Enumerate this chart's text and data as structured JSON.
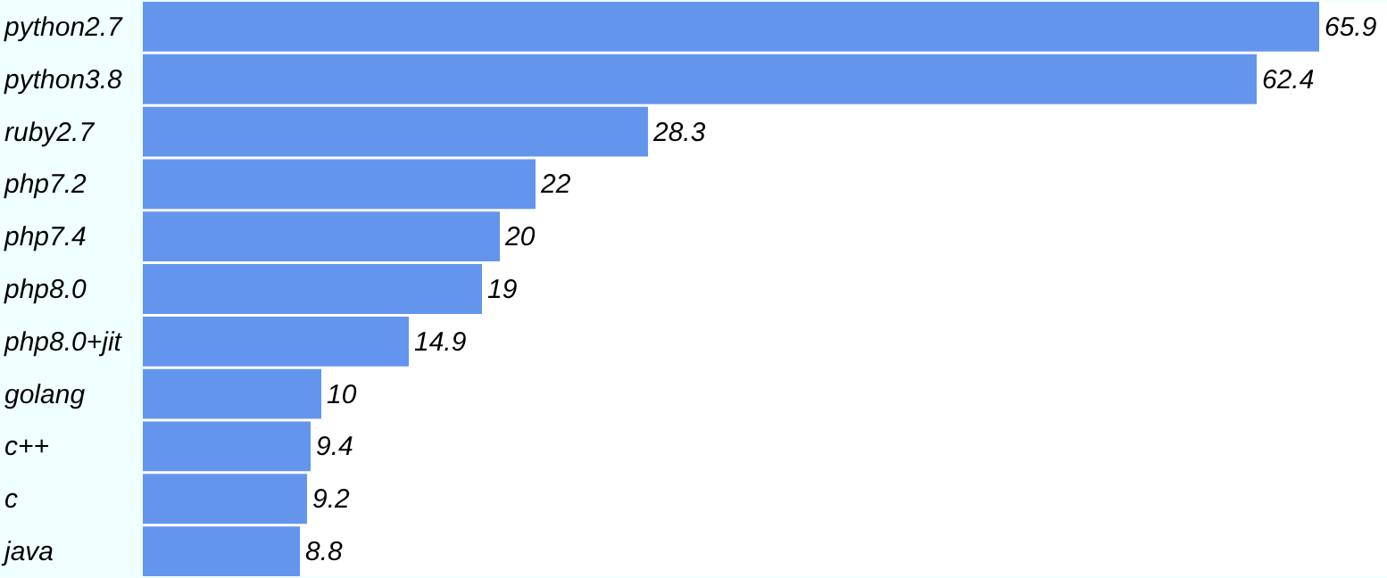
{
  "chart_data": {
    "type": "bar",
    "orientation": "horizontal",
    "categories": [
      "python2.7",
      "python3.8",
      "ruby2.7",
      "php7.2",
      "php7.4",
      "php8.0",
      "php8.0+jit",
      "golang",
      "c++",
      "c",
      "java"
    ],
    "values": [
      65.9,
      62.4,
      28.3,
      22,
      20,
      19,
      14.9,
      10,
      9.4,
      9.2,
      8.8
    ],
    "color": "#6495ed",
    "xlim": [
      0,
      69.7
    ],
    "data_labels": true,
    "tick_labels": "y"
  }
}
